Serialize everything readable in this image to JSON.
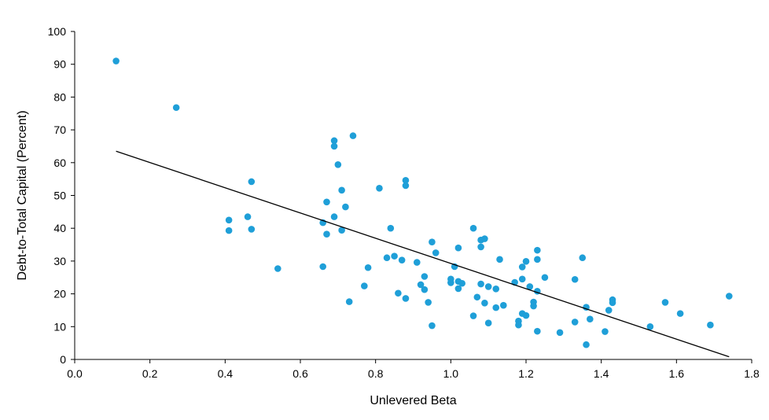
{
  "chart_data": {
    "type": "scatter",
    "title": "",
    "xlabel": "Unlevered Beta",
    "ylabel": "Debt-to-Total Capital (Percent)",
    "xlim": [
      0.0,
      1.8
    ],
    "ylim": [
      0,
      100
    ],
    "xticks": [
      "0.0",
      "0.2",
      "0.4",
      "0.6",
      "0.8",
      "1.0",
      "1.2",
      "1.4",
      "1.6",
      "1.8"
    ],
    "yticks": [
      "0",
      "10",
      "20",
      "30",
      "40",
      "50",
      "60",
      "70",
      "80",
      "90",
      "100"
    ],
    "grid": false,
    "legend": "none",
    "marker_color": "#1f9fd8",
    "trendline_color": "#000000",
    "trendline": {
      "x": [
        0.11,
        1.74
      ],
      "y": [
        63.5,
        0.8
      ]
    },
    "series": [
      {
        "points": [
          [
            0.11,
            91
          ],
          [
            0.27,
            76.8
          ],
          [
            0.41,
            42.5
          ],
          [
            0.41,
            39.3
          ],
          [
            0.46,
            43.5
          ],
          [
            0.47,
            54.2
          ],
          [
            0.47,
            39.7
          ],
          [
            0.54,
            27.7
          ],
          [
            0.66,
            41.7
          ],
          [
            0.66,
            28.3
          ],
          [
            0.67,
            48.0
          ],
          [
            0.67,
            38.2
          ],
          [
            0.69,
            66.7
          ],
          [
            0.69,
            65.0
          ],
          [
            0.69,
            43.5
          ],
          [
            0.7,
            59.4
          ],
          [
            0.71,
            51.6
          ],
          [
            0.71,
            39.4
          ],
          [
            0.72,
            46.5
          ],
          [
            0.73,
            17.6
          ],
          [
            0.74,
            68.2
          ],
          [
            0.77,
            22.4
          ],
          [
            0.78,
            28.0
          ],
          [
            0.81,
            52.2
          ],
          [
            0.83,
            31.0
          ],
          [
            0.84,
            40.0
          ],
          [
            0.85,
            31.5
          ],
          [
            0.86,
            20.2
          ],
          [
            0.87,
            30.3
          ],
          [
            0.88,
            54.6
          ],
          [
            0.88,
            53.0
          ],
          [
            0.88,
            18.6
          ],
          [
            0.91,
            29.6
          ],
          [
            0.92,
            22.8
          ],
          [
            0.93,
            25.3
          ],
          [
            0.93,
            21.3
          ],
          [
            0.94,
            17.4
          ],
          [
            0.95,
            35.8
          ],
          [
            0.95,
            10.3
          ],
          [
            0.96,
            32.5
          ],
          [
            1.0,
            24.5
          ],
          [
            1.0,
            23.4
          ],
          [
            1.01,
            28.3
          ],
          [
            1.02,
            34.0
          ],
          [
            1.02,
            23.8
          ],
          [
            1.02,
            21.6
          ],
          [
            1.03,
            23.2
          ],
          [
            1.06,
            40.0
          ],
          [
            1.06,
            13.3
          ],
          [
            1.07,
            19.0
          ],
          [
            1.08,
            36.4
          ],
          [
            1.08,
            34.3
          ],
          [
            1.08,
            23.0
          ],
          [
            1.09,
            36.8
          ],
          [
            1.09,
            17.2
          ],
          [
            1.1,
            22.2
          ],
          [
            1.1,
            11.1
          ],
          [
            1.12,
            21.5
          ],
          [
            1.12,
            15.8
          ],
          [
            1.13,
            30.5
          ],
          [
            1.14,
            16.5
          ],
          [
            1.17,
            23.5
          ],
          [
            1.18,
            11.7
          ],
          [
            1.18,
            10.5
          ],
          [
            1.19,
            28.2
          ],
          [
            1.19,
            24.5
          ],
          [
            1.19,
            14.0
          ],
          [
            1.2,
            29.9
          ],
          [
            1.2,
            13.4
          ],
          [
            1.21,
            22.2
          ],
          [
            1.22,
            17.5
          ],
          [
            1.22,
            16.3
          ],
          [
            1.23,
            33.3
          ],
          [
            1.23,
            30.5
          ],
          [
            1.23,
            20.8
          ],
          [
            1.23,
            8.6
          ],
          [
            1.25,
            25.0
          ],
          [
            1.29,
            8.2
          ],
          [
            1.33,
            24.4
          ],
          [
            1.33,
            11.4
          ],
          [
            1.35,
            31.0
          ],
          [
            1.36,
            15.9
          ],
          [
            1.36,
            4.5
          ],
          [
            1.37,
            12.3
          ],
          [
            1.41,
            8.5
          ],
          [
            1.42,
            15.0
          ],
          [
            1.43,
            18.2
          ],
          [
            1.43,
            17.3
          ],
          [
            1.53,
            10.0
          ],
          [
            1.57,
            17.4
          ],
          [
            1.61,
            14.0
          ],
          [
            1.69,
            10.5
          ],
          [
            1.74,
            19.3
          ]
        ]
      }
    ]
  }
}
